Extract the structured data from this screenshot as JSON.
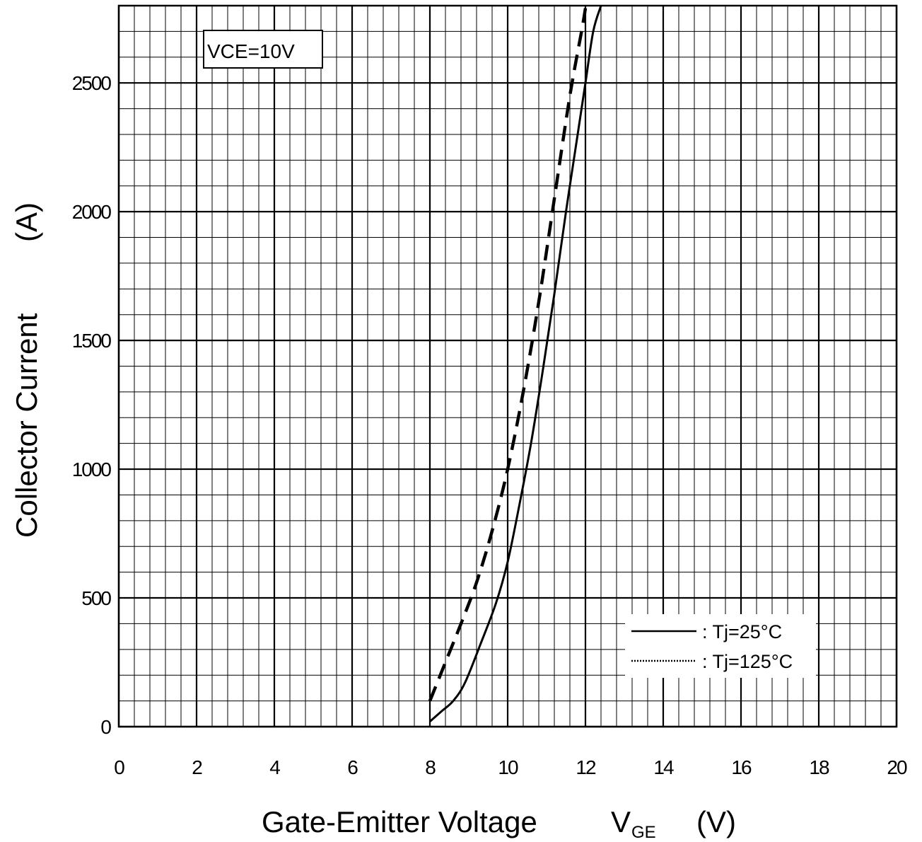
{
  "chart_data": {
    "type": "line",
    "xlabel": "Gate-Emitter Voltage",
    "xlabel_symbol": "V",
    "xlabel_subscript": "GE",
    "xlabel_unit": "(V)",
    "ylabel": "Collector Current",
    "ylabel_unit": "(A)",
    "xlim": [
      0,
      20
    ],
    "ylim": [
      0,
      2800
    ],
    "xticks": [
      0,
      2,
      4,
      6,
      8,
      10,
      12,
      14,
      16,
      18,
      20
    ],
    "xtick_labels": [
      "0",
      "2",
      "4",
      "6",
      "8",
      "10",
      "12",
      "14",
      "16",
      "18",
      "20"
    ],
    "yticks": [
      0,
      500,
      1000,
      1500,
      2000,
      2500
    ],
    "ytick_labels": [
      "0",
      "500",
      "1000",
      "1500",
      "2000",
      "2500"
    ],
    "grid": true,
    "annotation": "VCE=10V",
    "legend_position": "bottom-right",
    "series": [
      {
        "name": ": Tj=25°C",
        "style": "solid",
        "x": [
          8.0,
          8.3,
          8.6,
          8.9,
          9.3,
          9.7,
          10.0,
          10.3,
          10.6,
          10.9,
          11.2,
          11.5,
          11.8,
          12.0,
          12.2,
          12.4
        ],
        "y": [
          20,
          60,
          100,
          170,
          320,
          480,
          640,
          860,
          1100,
          1380,
          1680,
          2000,
          2300,
          2500,
          2700,
          2800
        ]
      },
      {
        "name": ": Tj=125°C",
        "style": "dashed",
        "x": [
          8.0,
          8.4,
          8.8,
          9.2,
          9.6,
          10.0,
          10.4,
          10.8,
          11.2,
          11.6,
          11.9,
          12.0
        ],
        "y": [
          100,
          250,
          400,
          560,
          760,
          1000,
          1300,
          1650,
          2050,
          2450,
          2700,
          2790
        ]
      }
    ]
  }
}
